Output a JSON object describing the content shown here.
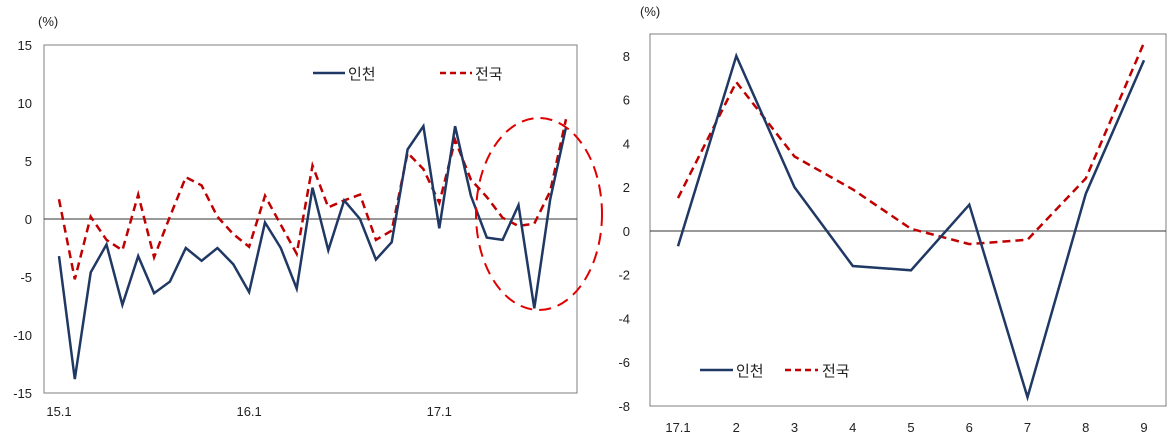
{
  "charts": [
    {
      "unit": "(%)",
      "legend": {
        "labels": [
          "인천",
          "전국"
        ]
      }
    },
    {
      "unit": "(%)",
      "legend": {
        "labels": [
          "인천",
          "전국"
        ]
      }
    }
  ],
  "colors": {
    "incheon": "#1f3864",
    "national": "#c00000",
    "zero_line": "#333333"
  },
  "chart_data": [
    {
      "type": "line",
      "x_tick_labels": [
        "15.1",
        "16.1",
        "17.1"
      ],
      "ylim": [
        -15,
        15
      ],
      "y_ticks": [
        15,
        10,
        5,
        0,
        -5,
        -10,
        -15
      ],
      "grid": false,
      "legend_position": "top-right",
      "highlight": "dashed red ellipse around recent months",
      "series": [
        {
          "name": "인천",
          "values": [
            -3.2,
            -13.8,
            -4.6,
            -2.2,
            -7.4,
            -3.2,
            -6.4,
            -5.4,
            -2.5,
            -3.6,
            -2.5,
            -3.9,
            -6.3,
            -0.3,
            -2.5,
            -6.0,
            2.7,
            -2.7,
            1.6,
            0.0,
            -3.5,
            -2.0,
            6.0,
            8.0,
            -0.8,
            8.0,
            2.0,
            -1.6,
            -1.8,
            1.2,
            -7.7,
            1.7,
            7.9
          ]
        },
        {
          "name": "전국",
          "values": [
            1.7,
            -5.2,
            0.2,
            -1.8,
            -2.7,
            2.1,
            -3.3,
            0.2,
            3.6,
            2.9,
            0.2,
            -1.3,
            -2.4,
            2.0,
            -0.5,
            -3.0,
            4.6,
            1.0,
            1.6,
            2.1,
            -1.8,
            -1.0,
            5.7,
            4.3,
            1.4,
            6.8,
            3.4,
            1.9,
            0.1,
            -0.6,
            -0.4,
            2.4,
            8.6
          ]
        }
      ]
    },
    {
      "type": "line",
      "categories": [
        "17.1",
        "2",
        "3",
        "4",
        "5",
        "6",
        "7",
        "8",
        "9"
      ],
      "ylim": [
        -8,
        9
      ],
      "y_ticks": [
        8,
        6,
        4,
        2,
        0,
        -2,
        -4,
        -6,
        -8
      ],
      "grid": false,
      "legend_position": "bottom-left",
      "series": [
        {
          "name": "인천",
          "values": [
            -0.7,
            8.0,
            2.0,
            -1.6,
            -1.8,
            1.2,
            -7.6,
            1.7,
            7.8
          ]
        },
        {
          "name": "전국",
          "values": [
            1.5,
            6.8,
            3.4,
            1.9,
            0.1,
            -0.6,
            -0.4,
            2.4,
            8.6
          ]
        }
      ]
    }
  ]
}
